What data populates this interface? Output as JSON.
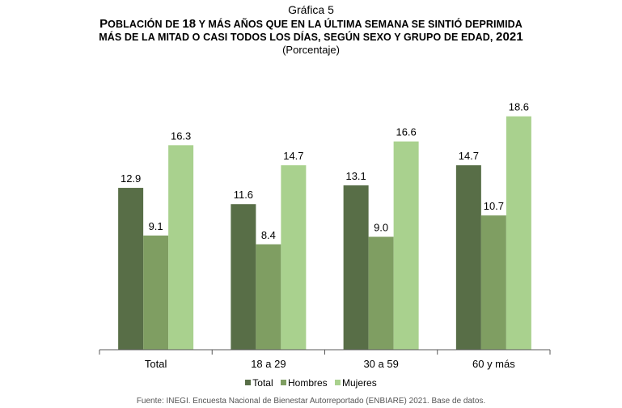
{
  "colors": {
    "total": "#586e47",
    "hombres": "#7f9e62",
    "mujeres": "#a9d18e",
    "axis": "#595959"
  },
  "chart_data": {
    "type": "bar",
    "figure_number": "Gráfica 5",
    "title_parts": [
      {
        "text": "P",
        "big": true
      },
      {
        "text": "OBLACIÓN DE ",
        "big": false
      },
      {
        "text": "18",
        "big": true
      },
      {
        "text": " Y MÁS AÑOS QUE EN LA ÚLTIMA SEMANA SE SINTIÓ DEPRIMIDA",
        "big": false
      }
    ],
    "title_line2_parts": [
      {
        "text": "MÁS DE LA MITAD O CASI TODOS LOS DÍAS, SEGÚN SEXO Y GRUPO DE EDAD, ",
        "big": false
      },
      {
        "text": "2021",
        "big": true
      }
    ],
    "subtitle": "(Porcentaje)",
    "categories": [
      "Total",
      "18 a 29",
      "30 a 59",
      "60 y más"
    ],
    "series": [
      {
        "name": "Total",
        "key": "total",
        "values": [
          12.9,
          11.6,
          13.1,
          14.7
        ],
        "labels": [
          "12.9",
          "11.6",
          "13.1",
          "14.7"
        ]
      },
      {
        "name": "Hombres",
        "key": "hombres",
        "values": [
          9.1,
          8.4,
          9.0,
          10.7
        ],
        "labels": [
          "9.1",
          "8.4",
          "9.0",
          "10.7"
        ]
      },
      {
        "name": "Mujeres",
        "key": "mujeres",
        "values": [
          16.3,
          14.7,
          16.6,
          18.6
        ],
        "labels": [
          "16.3",
          "14.7",
          "16.6",
          "18.6"
        ]
      }
    ],
    "ylim": [
      0,
      20
    ],
    "xlabel": "",
    "ylabel": "",
    "grid": false,
    "legend_position": "bottom"
  },
  "legend": {
    "total": "Total",
    "hombres": "Hombres",
    "mujeres": "Mujeres"
  },
  "source": "Fuente: INEGI. Encuesta Nacional de Bienestar Autorreportado (ENBIARE) 2021. Base de datos."
}
